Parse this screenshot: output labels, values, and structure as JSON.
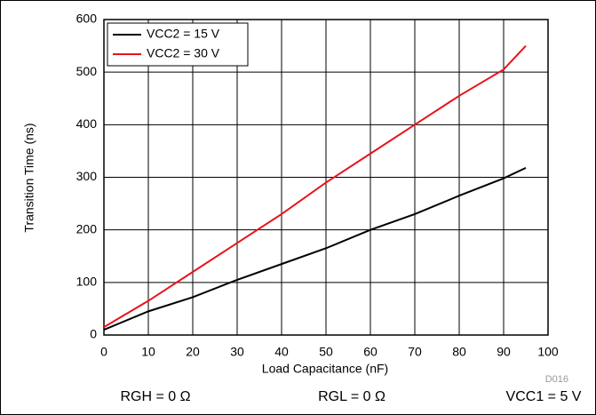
{
  "chart_data": {
    "type": "line",
    "x_label": "Load Capacitance (nF)",
    "y_label": "Transition Time (ns)",
    "x": [
      0,
      10,
      20,
      30,
      40,
      50,
      60,
      70,
      80,
      90,
      95
    ],
    "series": [
      {
        "name": "VCC2 = 15 V",
        "color": "#000000",
        "values": [
          10,
          45,
          72,
          105,
          135,
          165,
          200,
          230,
          265,
          298,
          318
        ]
      },
      {
        "name": "VCC2 = 30 V",
        "color": "#e8141c",
        "values": [
          15,
          65,
          120,
          175,
          230,
          290,
          345,
          400,
          455,
          505,
          550
        ]
      }
    ],
    "xlim": [
      0,
      100
    ],
    "xticks": [
      0,
      10,
      20,
      30,
      40,
      50,
      60,
      70,
      80,
      90,
      100
    ],
    "ylim": [
      0,
      600
    ],
    "yticks": [
      0,
      100,
      200,
      300,
      400,
      500,
      600
    ],
    "grid": true,
    "legend": "upper-left",
    "annotations": [
      "RGH = 0 Ω",
      "RGL = 0 Ω",
      "VCC1 = 5 V",
      "D016"
    ]
  }
}
